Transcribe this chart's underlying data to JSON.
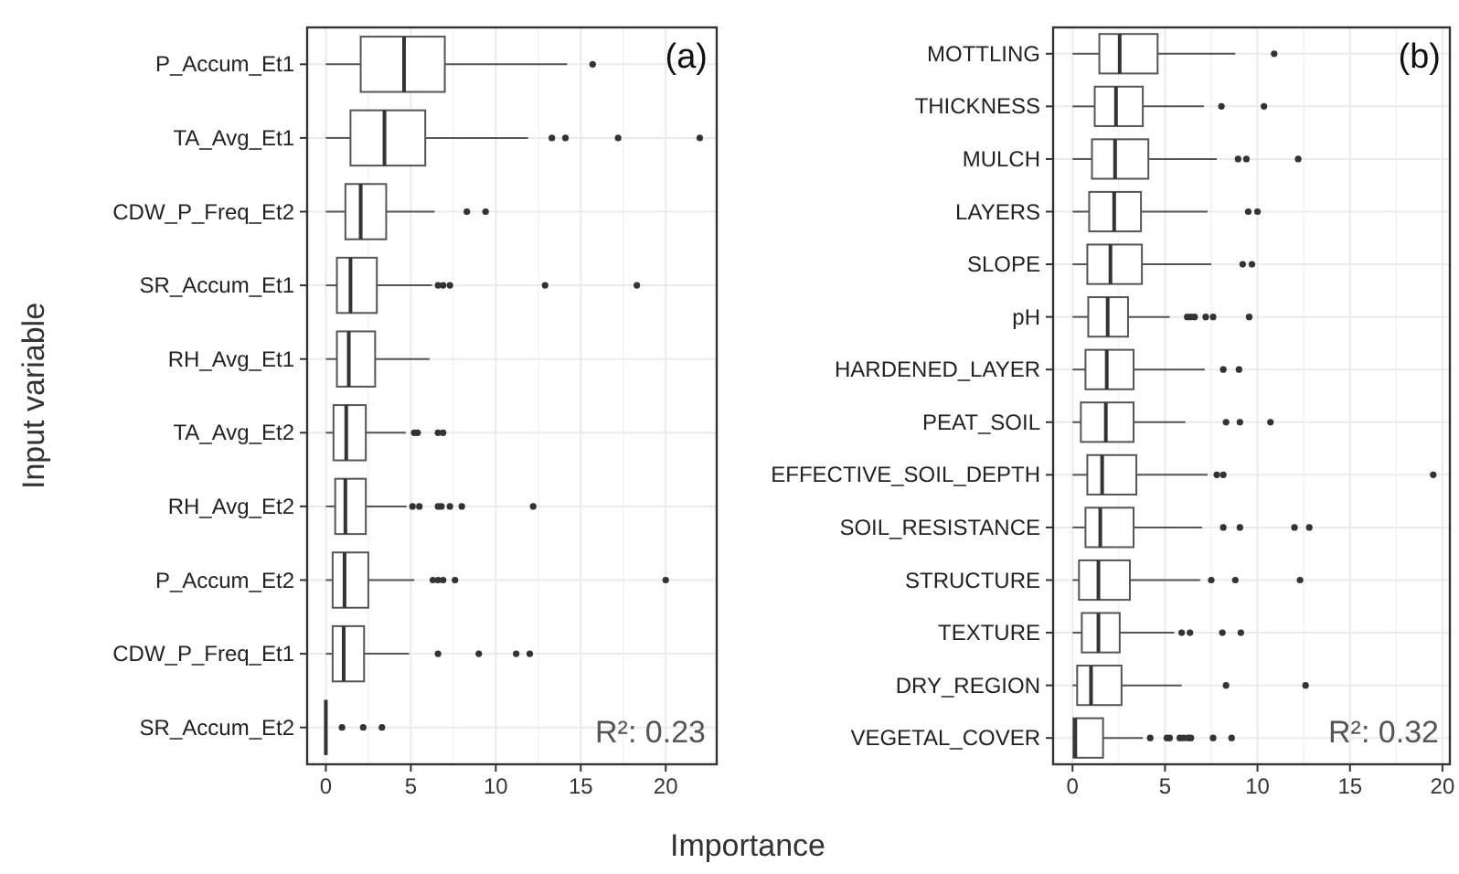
{
  "chart_data": [
    {
      "type": "box",
      "orientation": "horizontal",
      "ylabel": "Input variable",
      "xlabel": "Importance",
      "grid": true,
      "xlim": [
        -1.1,
        23
      ],
      "xticks": [
        0,
        5,
        10,
        15,
        20
      ],
      "annotations": [
        "(a)",
        "R²: 0.23"
      ],
      "categories": [
        "P_Accum_Et1",
        "TA_Avg_Et1",
        "CDW_P_Freq_Et2",
        "SR_Accum_Et1",
        "RH_Avg_Et1",
        "TA_Avg_Et2",
        "RH_Avg_Et2",
        "P_Accum_Et2",
        "CDW_P_Freq_Et1",
        "SR_Accum_Et2"
      ],
      "boxes": [
        {
          "low": 0,
          "q1": 2.05,
          "median": 4.6,
          "q3": 7.0,
          "high": 14.2,
          "outliers": [
            15.7
          ]
        },
        {
          "low": 0,
          "q1": 1.45,
          "median": 3.45,
          "q3": 5.85,
          "high": 11.9,
          "outliers": [
            13.3,
            14.1,
            17.2,
            22.0
          ]
        },
        {
          "low": 0,
          "q1": 1.15,
          "median": 2.05,
          "q3": 3.55,
          "high": 6.4,
          "outliers": [
            8.3,
            9.4
          ]
        },
        {
          "low": 0,
          "q1": 0.65,
          "median": 1.45,
          "q3": 3.0,
          "high": 6.25,
          "outliers": [
            6.6,
            6.9,
            7.3,
            12.9,
            18.3
          ]
        },
        {
          "low": 0,
          "q1": 0.65,
          "median": 1.35,
          "q3": 2.9,
          "high": 6.1
        },
        {
          "low": 0,
          "q1": 0.45,
          "median": 1.2,
          "q3": 2.35,
          "high": 4.7,
          "outliers": [
            5.2,
            5.4,
            6.6,
            6.9
          ]
        },
        {
          "low": 0,
          "q1": 0.55,
          "median": 1.15,
          "q3": 2.35,
          "high": 4.75,
          "outliers": [
            5.1,
            5.5,
            6.6,
            6.8,
            7.3,
            8.0,
            12.2
          ]
        },
        {
          "low": 0,
          "q1": 0.4,
          "median": 1.1,
          "q3": 2.5,
          "high": 5.2,
          "outliers": [
            6.3,
            6.6,
            6.9,
            7.6,
            20.0
          ]
        },
        {
          "low": 0,
          "q1": 0.4,
          "median": 1.05,
          "q3": 2.25,
          "high": 4.9,
          "outliers": [
            6.6,
            9.0,
            11.2,
            12.0
          ]
        },
        {
          "low": 0,
          "q1": 0,
          "median": 0,
          "q3": 0,
          "high": 0,
          "outliers": [
            0.95,
            2.2,
            3.3
          ]
        }
      ]
    },
    {
      "type": "box",
      "orientation": "horizontal",
      "grid": true,
      "xlim": [
        -1.05,
        20.4
      ],
      "xticks": [
        0,
        5,
        10,
        15,
        20
      ],
      "annotations": [
        "(b)",
        "R²: 0.32"
      ],
      "categories": [
        "MOTTLING",
        "THICKNESS",
        "MULCH",
        "LAYERS",
        "SLOPE",
        "pH",
        "HARDENED_LAYER",
        "PEAT_SOIL",
        "EFFECTIVE_SOIL_DEPTH",
        "SOIL_RESISTANCE",
        "STRUCTURE",
        "TEXTURE",
        "DRY_REGION",
        "VEGETAL_COVER"
      ],
      "boxes": [
        {
          "low": 0,
          "q1": 1.45,
          "median": 2.55,
          "q3": 4.6,
          "high": 8.8,
          "outliers": [
            10.9
          ]
        },
        {
          "low": 0,
          "q1": 1.2,
          "median": 2.35,
          "q3": 3.8,
          "high": 7.1,
          "outliers": [
            8.05,
            10.35
          ]
        },
        {
          "low": 0,
          "q1": 1.05,
          "median": 2.3,
          "q3": 4.1,
          "high": 7.8,
          "outliers": [
            8.95,
            9.4,
            12.2
          ]
        },
        {
          "low": 0,
          "q1": 0.9,
          "median": 2.25,
          "q3": 3.7,
          "high": 7.3,
          "outliers": [
            9.5,
            10.0
          ]
        },
        {
          "low": 0,
          "q1": 0.8,
          "median": 2.05,
          "q3": 3.75,
          "high": 7.5,
          "outliers": [
            9.2,
            9.7
          ]
        },
        {
          "low": 0,
          "q1": 0.85,
          "median": 1.9,
          "q3": 3.0,
          "high": 5.25,
          "outliers": [
            6.2,
            6.4,
            6.6,
            7.2,
            7.6,
            9.55
          ]
        },
        {
          "low": 0,
          "q1": 0.7,
          "median": 1.85,
          "q3": 3.3,
          "high": 7.15,
          "outliers": [
            8.15,
            9.0
          ]
        },
        {
          "low": 0,
          "q1": 0.45,
          "median": 1.8,
          "q3": 3.3,
          "high": 6.1,
          "outliers": [
            8.3,
            9.05,
            10.7
          ]
        },
        {
          "low": 0,
          "q1": 0.8,
          "median": 1.6,
          "q3": 3.45,
          "high": 7.3,
          "outliers": [
            7.8,
            8.15,
            19.5
          ]
        },
        {
          "low": 0,
          "q1": 0.7,
          "median": 1.5,
          "q3": 3.3,
          "high": 7.0,
          "outliers": [
            8.15,
            9.05,
            12.0,
            12.8
          ]
        },
        {
          "low": 0,
          "q1": 0.35,
          "median": 1.4,
          "q3": 3.1,
          "high": 6.9,
          "outliers": [
            7.5,
            8.8,
            12.3
          ]
        },
        {
          "low": 0,
          "q1": 0.5,
          "median": 1.4,
          "q3": 2.55,
          "high": 5.5,
          "outliers": [
            5.9,
            6.35,
            8.1,
            9.1
          ]
        },
        {
          "low": 0,
          "q1": 0.25,
          "median": 1.0,
          "q3": 2.65,
          "high": 5.9,
          "outliers": [
            8.3,
            12.6
          ]
        },
        {
          "low": 0,
          "q1": 0.05,
          "median": 0.15,
          "q3": 1.65,
          "high": 3.8,
          "outliers": [
            4.2,
            5.1,
            5.25,
            5.8,
            6.0,
            6.25,
            6.4,
            7.6,
            8.6
          ]
        }
      ]
    }
  ]
}
